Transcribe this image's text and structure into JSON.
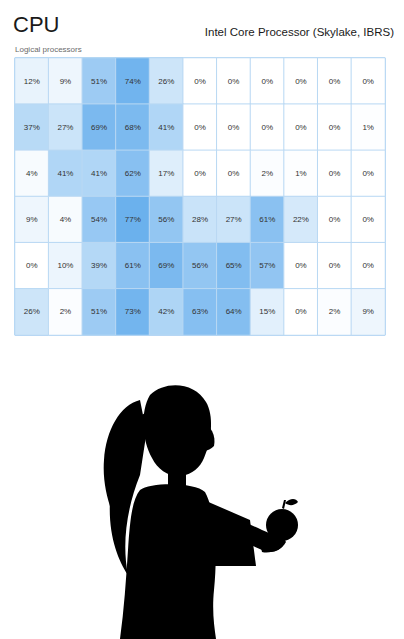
{
  "header": {
    "title": "CPU",
    "processor": "Intel Core Processor (Skylake, IBRS)",
    "subtitle": "Logical processors"
  },
  "chart_data": {
    "type": "heatmap",
    "tick_labels": false,
    "color": "#3f9ae8",
    "color_range": [
      0,
      100
    ],
    "values": [
      [
        12,
        9,
        51,
        74,
        26,
        0,
        0,
        0,
        0,
        0,
        0
      ],
      [
        37,
        27,
        69,
        68,
        41,
        0,
        0,
        0,
        0,
        0,
        1
      ],
      [
        4,
        41,
        41,
        62,
        17,
        0,
        0,
        2,
        1,
        0,
        0
      ],
      [
        9,
        4,
        54,
        77,
        56,
        28,
        27,
        61,
        22,
        0,
        0
      ],
      [
        0,
        10,
        39,
        61,
        69,
        56,
        65,
        57,
        0,
        0,
        0
      ],
      [
        26,
        2,
        51,
        73,
        42,
        63,
        64,
        15,
        0,
        2,
        9
      ]
    ],
    "value_labels": [
      [
        "12%",
        "9%",
        "51%",
        "74%",
        "26%",
        "0%",
        "0%",
        "0%",
        "0%",
        "0%",
        "0%"
      ],
      [
        "37%",
        "27%",
        "69%",
        "68%",
        "41%",
        "0%",
        "0%",
        "0%",
        "0%",
        "0%",
        "1%"
      ],
      [
        "4%",
        "41%",
        "41%",
        "62%",
        "17%",
        "0%",
        "0%",
        "2%",
        "1%",
        "0%",
        "0%"
      ],
      [
        "9%",
        "4%",
        "54%",
        "77%",
        "56%",
        "28%",
        "27%",
        "61%",
        "22%",
        "0%",
        "0%"
      ],
      [
        "0%",
        "10%",
        "39%",
        "61%",
        "69%",
        "56%",
        "65%",
        "57%",
        "0%",
        "0%",
        "0%"
      ],
      [
        "26%",
        "2%",
        "51%",
        "73%",
        "42%",
        "63%",
        "64%",
        "15%",
        "0%",
        "2%",
        "9%"
      ]
    ]
  }
}
